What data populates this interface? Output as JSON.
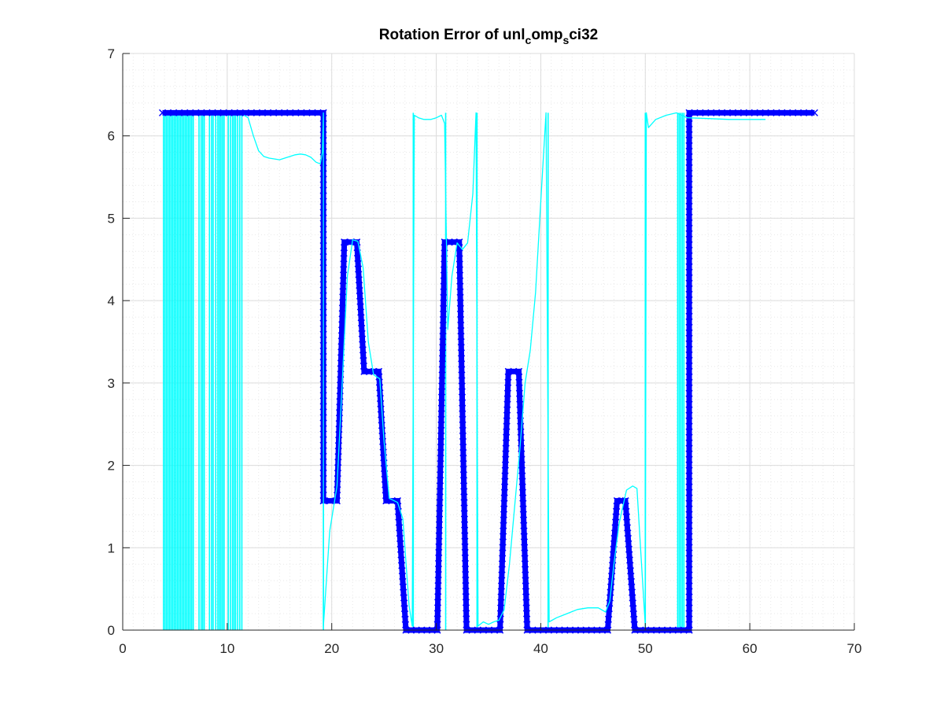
{
  "figure": {
    "background": "#ffffff"
  },
  "chart_data": {
    "type": "line",
    "title": {
      "segments": [
        {
          "text": "Rotation Error of unl",
          "style": "normal"
        },
        {
          "text": "c",
          "style": "sub"
        },
        {
          "text": "omp",
          "style": "normal"
        },
        {
          "text": "s",
          "style": "sub"
        },
        {
          "text": "ci32",
          "style": "normal"
        }
      ]
    },
    "xlabel": "",
    "ylabel": "",
    "xlim": [
      0,
      70
    ],
    "ylim": [
      0,
      7
    ],
    "xticks": [
      0,
      10,
      20,
      30,
      40,
      50,
      60,
      70
    ],
    "yticks": [
      0,
      1,
      2,
      3,
      4,
      5,
      6,
      7
    ],
    "grid": {
      "major": true,
      "minor": true
    },
    "colors": {
      "ground_truth": "#0000ff",
      "estimate": "#00ffff",
      "axis": "#262626",
      "grid_major": "#dcdcdc",
      "grid_minor": "#e8e8e8"
    },
    "series": [
      {
        "role": "ground_truth",
        "style": "thick line with x markers",
        "points": [
          [
            3.8,
            6.28
          ],
          [
            19.2,
            6.28
          ],
          [
            19.2,
            1.57
          ],
          [
            20.5,
            1.57
          ],
          [
            21.2,
            4.71
          ],
          [
            22.4,
            4.71
          ],
          [
            23.1,
            3.14
          ],
          [
            24.5,
            3.14
          ],
          [
            25.2,
            1.57
          ],
          [
            26.3,
            1.57
          ],
          [
            27.1,
            0.0
          ],
          [
            30.1,
            0.0
          ],
          [
            30.8,
            4.71
          ],
          [
            32.2,
            4.71
          ],
          [
            32.9,
            0.0
          ],
          [
            36.1,
            0.0
          ],
          [
            36.9,
            3.14
          ],
          [
            37.9,
            3.14
          ],
          [
            38.7,
            0.0
          ],
          [
            46.4,
            0.0
          ],
          [
            47.3,
            1.57
          ],
          [
            48.1,
            1.57
          ],
          [
            49.0,
            0.0
          ],
          [
            54.2,
            0.0
          ],
          [
            54.2,
            6.28
          ],
          [
            66.2,
            6.28
          ]
        ]
      },
      {
        "role": "estimate",
        "style": "thin line",
        "points": [
          [
            11.6,
            6.25
          ],
          [
            12.0,
            6.22
          ],
          [
            12.5,
            6.0
          ],
          [
            13.0,
            5.82
          ],
          [
            13.5,
            5.75
          ],
          [
            14.0,
            5.73
          ],
          [
            14.5,
            5.72
          ],
          [
            15.0,
            5.71
          ],
          [
            15.5,
            5.73
          ],
          [
            16.0,
            5.75
          ],
          [
            16.5,
            5.77
          ],
          [
            17.0,
            5.78
          ],
          [
            17.5,
            5.77
          ],
          [
            18.0,
            5.74
          ],
          [
            18.5,
            5.68
          ],
          [
            18.9,
            5.66
          ],
          [
            19.1,
            5.8
          ],
          [
            19.2,
            6.28
          ],
          [
            19.2,
            0.05
          ],
          [
            19.8,
            1.2
          ],
          [
            20.5,
            1.75
          ],
          [
            21.0,
            3.0
          ],
          [
            21.5,
            4.3
          ],
          [
            22.0,
            4.74
          ],
          [
            22.5,
            4.72
          ],
          [
            23.0,
            4.4
          ],
          [
            23.5,
            3.5
          ],
          [
            24.0,
            3.1
          ],
          [
            24.6,
            3.05
          ],
          [
            25.0,
            2.3
          ],
          [
            25.5,
            1.6
          ],
          [
            26.3,
            1.55
          ],
          [
            26.8,
            1.35
          ],
          [
            27.4,
            0.3
          ],
          [
            27.7,
            0.05
          ],
          [
            27.9,
            6.25
          ],
          [
            28.3,
            6.22
          ],
          [
            28.8,
            6.2
          ],
          [
            29.5,
            6.2
          ],
          [
            30.0,
            6.22
          ],
          [
            30.5,
            6.25
          ],
          [
            30.8,
            6.15
          ],
          [
            31.1,
            3.65
          ],
          [
            31.5,
            4.3
          ],
          [
            32.0,
            4.7
          ],
          [
            32.5,
            4.62
          ],
          [
            33.0,
            4.7
          ],
          [
            33.5,
            5.3
          ],
          [
            33.8,
            6.28
          ],
          [
            34.0,
            0.05
          ],
          [
            34.5,
            0.1
          ],
          [
            35.0,
            0.07
          ],
          [
            35.5,
            0.1
          ],
          [
            36.0,
            0.12
          ],
          [
            36.5,
            0.25
          ],
          [
            37.0,
            0.8
          ],
          [
            37.5,
            1.5
          ],
          [
            38.0,
            2.2
          ],
          [
            38.5,
            3.0
          ],
          [
            39.0,
            3.4
          ],
          [
            39.5,
            4.1
          ],
          [
            40.0,
            5.2
          ],
          [
            40.5,
            6.28
          ],
          [
            40.8,
            0.1
          ],
          [
            41.5,
            0.15
          ],
          [
            42.5,
            0.2
          ],
          [
            43.5,
            0.25
          ],
          [
            44.5,
            0.27
          ],
          [
            45.5,
            0.27
          ],
          [
            46.2,
            0.22
          ],
          [
            46.6,
            0.35
          ],
          [
            47.0,
            0.8
          ],
          [
            47.5,
            1.3
          ],
          [
            48.2,
            1.7
          ],
          [
            48.8,
            1.75
          ],
          [
            49.2,
            1.72
          ],
          [
            49.5,
            1.1
          ],
          [
            50.0,
            0.05
          ],
          [
            50.1,
            6.28
          ],
          [
            50.3,
            6.1
          ],
          [
            51.0,
            6.2
          ],
          [
            52.0,
            6.25
          ],
          [
            53.0,
            6.28
          ],
          [
            54.0,
            6.22
          ],
          [
            56.0,
            6.21
          ],
          [
            58.0,
            6.2
          ],
          [
            60.0,
            6.2
          ],
          [
            61.5,
            6.2
          ]
        ]
      }
    ],
    "vertical_jumps": {
      "role": "estimate",
      "x": [
        3.9,
        4.05,
        4.2,
        4.35,
        4.5,
        4.65,
        4.8,
        4.95,
        5.1,
        5.25,
        5.4,
        5.55,
        5.7,
        5.85,
        6.0,
        6.15,
        6.3,
        6.45,
        6.6,
        6.75,
        7.3,
        7.5,
        7.65,
        7.8,
        8.3,
        8.5,
        8.65,
        8.9,
        9.1,
        9.25,
        9.4,
        9.55,
        9.7,
        10.1,
        10.3,
        10.5,
        10.65,
        10.8,
        11.0,
        11.2,
        11.4,
        19.2,
        27.8,
        30.9,
        33.9,
        40.7,
        50.0,
        53.1,
        53.25,
        53.4,
        53.55,
        53.7
      ],
      "from": 0,
      "to": 6.28
    }
  }
}
